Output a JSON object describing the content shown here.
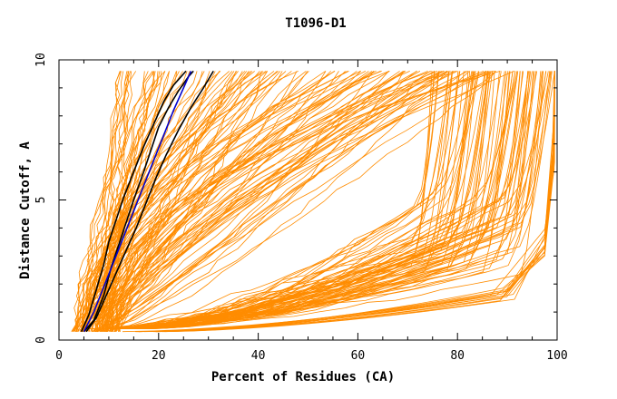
{
  "chart_data": {
    "type": "line",
    "title": "T1096-D1",
    "xlabel": "Percent of Residues (CA)",
    "ylabel": "Distance Cutoff, A",
    "xlim": [
      0,
      100
    ],
    "ylim": [
      0,
      10
    ],
    "xticks": [
      "0",
      "20",
      "40",
      "60",
      "80",
      "100"
    ],
    "yticks": [
      "0",
      "5",
      "10"
    ],
    "grid": false,
    "colors": {
      "background_models": "#ff8c00",
      "highlight_a": "#000000",
      "highlight_b": "#0000cd"
    },
    "series": [
      {
        "name": "highlight-black-1",
        "color": "#000000",
        "x": [
          5,
          7,
          9,
          10.5,
          12,
          13.5,
          15,
          17,
          18.5,
          20,
          22,
          24,
          26,
          27
        ],
        "y": [
          0.3,
          0.7,
          1.6,
          2.6,
          3.4,
          4.2,
          5.0,
          6.0,
          6.8,
          7.6,
          8.3,
          8.9,
          9.4,
          9.6
        ]
      },
      {
        "name": "highlight-black-2",
        "color": "#000000",
        "x": [
          4.5,
          6,
          7.5,
          9,
          10,
          11.5,
          13,
          15,
          17,
          19,
          21,
          23,
          25.5
        ],
        "y": [
          0.3,
          0.9,
          1.8,
          2.7,
          3.5,
          4.3,
          5.1,
          6.0,
          6.9,
          7.7,
          8.5,
          9.1,
          9.6
        ]
      },
      {
        "name": "highlight-black-3",
        "color": "#000000",
        "x": [
          5.5,
          7.5,
          9.5,
          11.5,
          13.5,
          15.5,
          17.5,
          19.5,
          21.5,
          24,
          26.5,
          29,
          31
        ],
        "y": [
          0.3,
          0.8,
          1.6,
          2.4,
          3.2,
          4.0,
          4.9,
          5.8,
          6.6,
          7.5,
          8.3,
          9.0,
          9.6
        ]
      },
      {
        "name": "highlight-blue",
        "color": "#0000cd",
        "x": [
          5,
          7,
          9,
          11,
          13,
          15,
          17,
          19,
          21,
          23,
          25,
          26.5
        ],
        "y": [
          0.3,
          1.0,
          1.9,
          2.8,
          3.7,
          4.6,
          5.5,
          6.4,
          7.3,
          8.2,
          9.0,
          9.6
        ]
      }
    ]
  }
}
